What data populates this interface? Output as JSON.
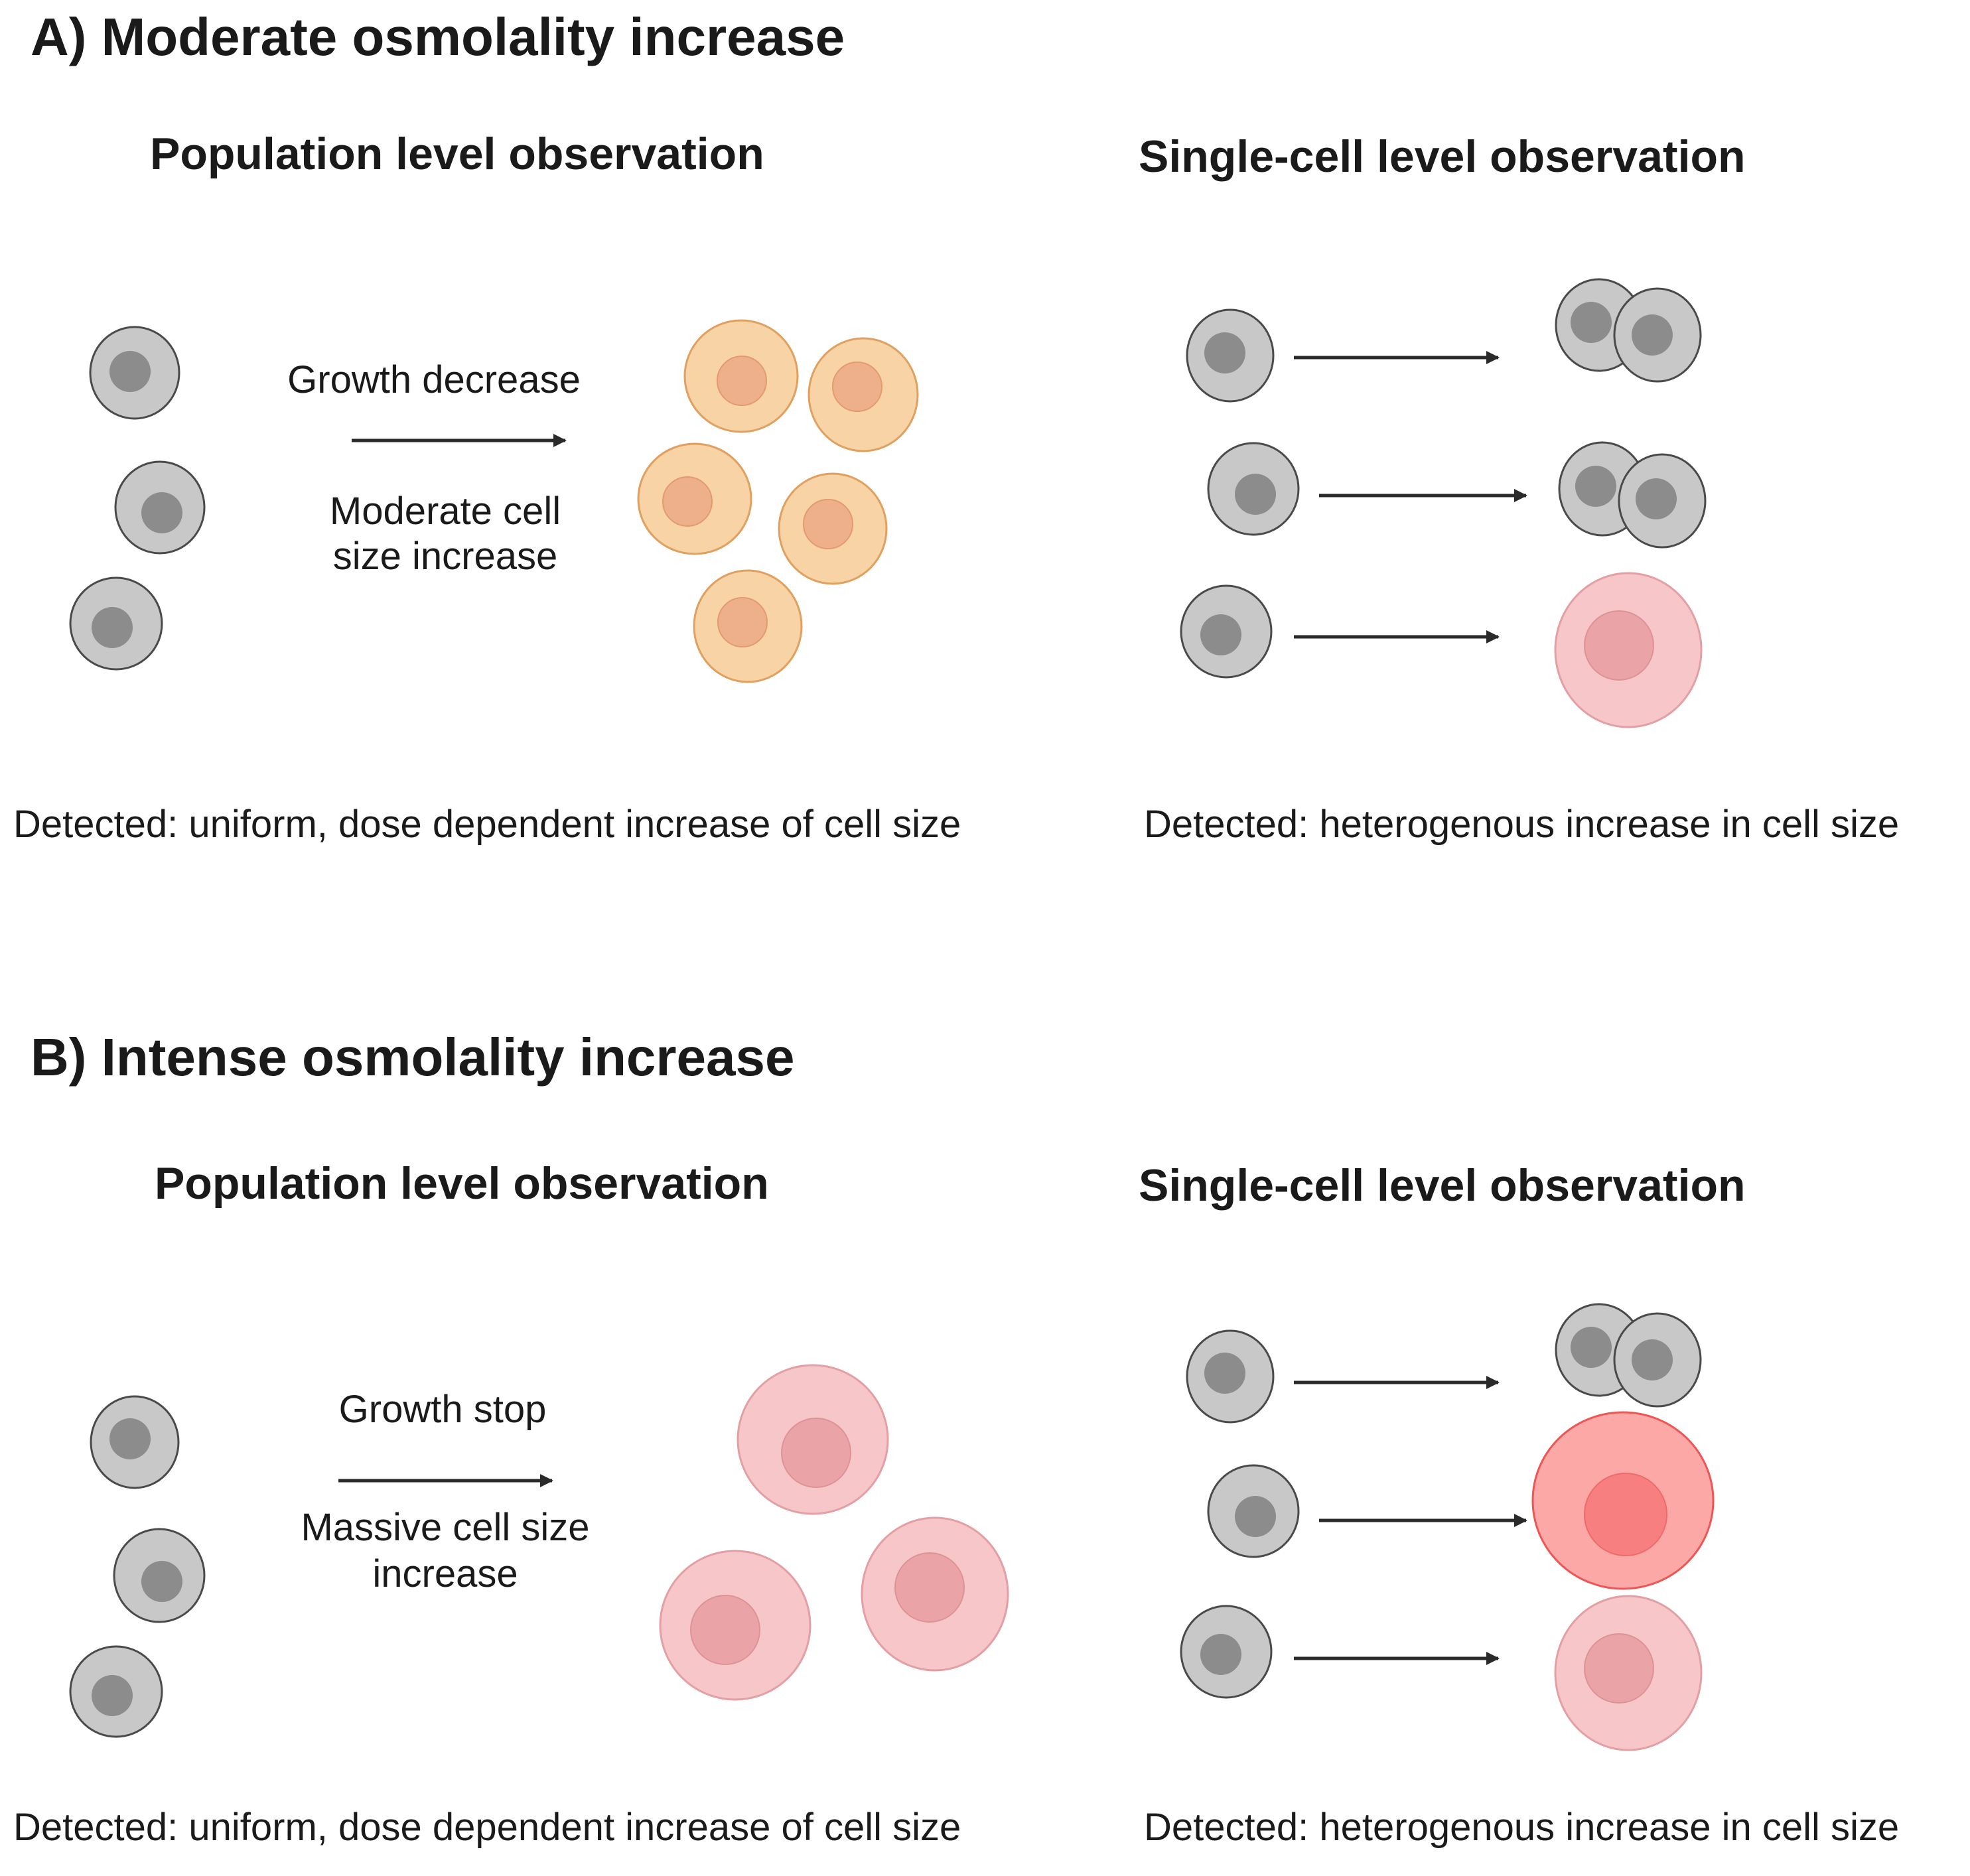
{
  "section_a": {
    "title": "A) Moderate osmolality increase",
    "population": {
      "heading": "Population level  observation",
      "arrow_label_top": "Growth decrease",
      "arrow_label_bottom_line1": "Moderate cell",
      "arrow_label_bottom_line2": "size increase",
      "detected": "Detected: uniform, dose dependent increase of cell size"
    },
    "single_cell": {
      "heading": "Single-cell level observation",
      "detected": "Detected: heterogenous increase in cell size"
    }
  },
  "section_b": {
    "title": "B) Intense osmolality increase",
    "population": {
      "heading": "Population level  observation",
      "arrow_label_top": "Growth stop",
      "arrow_label_bottom_line1": "Massive cell size",
      "arrow_label_bottom_line2": "increase",
      "detected": "Detected: uniform, dose dependent increase of cell size"
    },
    "single_cell": {
      "heading": "Single-cell level observation",
      "detected": "Detected: heterogenous increase in cell size"
    }
  },
  "colors": {
    "normal_cell": "#c8c8c8",
    "normal_nucleus": "#8c8c8c",
    "moderate_cell": "#f8d3a5",
    "moderate_nucleus": "#eeb08a",
    "large_cell": "#f6c6c8",
    "large_nucleus": "#eaa4a8",
    "intense_cell": "#fba8a6",
    "intense_nucleus": "#f77f7f"
  }
}
